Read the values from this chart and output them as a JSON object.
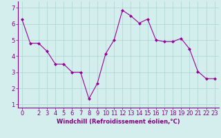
{
  "x": [
    0,
    1,
    2,
    3,
    4,
    5,
    6,
    7,
    8,
    9,
    10,
    11,
    12,
    13,
    14,
    15,
    16,
    17,
    18,
    19,
    20,
    21,
    22,
    23
  ],
  "y": [
    6.3,
    4.8,
    4.8,
    4.3,
    3.5,
    3.5,
    3.0,
    3.0,
    1.35,
    2.3,
    4.15,
    5.0,
    6.85,
    6.5,
    6.05,
    6.3,
    5.0,
    4.9,
    4.9,
    5.1,
    4.45,
    3.05,
    2.6,
    2.6
  ],
  "line_color": "#990099",
  "marker": "D",
  "marker_size": 2.0,
  "bg_color": "#d4eeed",
  "grid_color": "#b0d8d8",
  "xlabel": "Windchill (Refroidissement éolien,°C)",
  "xlabel_color": "#800080",
  "xlabel_fontsize": 6.0,
  "tick_color": "#800080",
  "tick_fontsize": 6.0,
  "ylim": [
    0.8,
    7.4
  ],
  "yticks": [
    1,
    2,
    3,
    4,
    5,
    6,
    7
  ],
  "xlim": [
    -0.5,
    23.5
  ],
  "xticks": [
    0,
    2,
    3,
    4,
    5,
    6,
    7,
    8,
    9,
    10,
    11,
    12,
    13,
    14,
    15,
    16,
    17,
    18,
    19,
    20,
    21,
    22,
    23
  ]
}
